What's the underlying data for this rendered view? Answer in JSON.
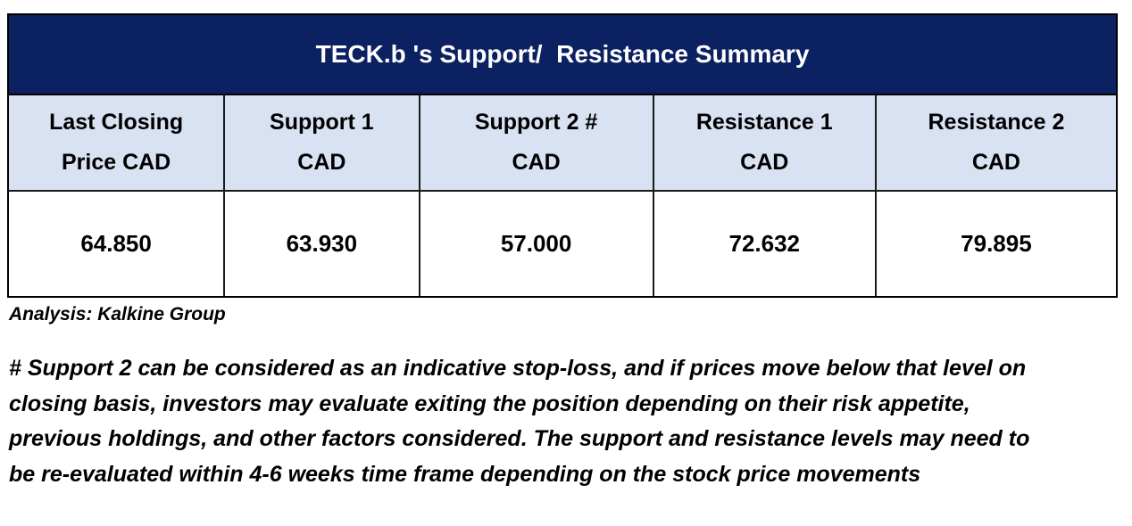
{
  "chart_data": {
    "type": "table",
    "title": "TECK.b 's Support/  Resistance Summary",
    "columns": [
      "Last Closing Price CAD",
      "Support 1 CAD",
      "Support 2 # CAD",
      "Resistance 1 CAD",
      "Resistance 2 CAD"
    ],
    "values": [
      64.85,
      63.93,
      57.0,
      72.632,
      79.895
    ],
    "source": "Analysis: Kalkine Group"
  },
  "table": {
    "title": "TECK.b 's Support/  Resistance Summary",
    "headers": [
      "Last Closing\nPrice CAD",
      "Support 1\nCAD",
      "Support 2 #\nCAD",
      "Resistance 1\nCAD",
      "Resistance 2\nCAD"
    ],
    "values": [
      "64.850",
      "63.930",
      "57.000",
      "72.632",
      "79.895"
    ]
  },
  "notes": {
    "source": "Analysis: Kalkine Group",
    "footnote": "# Support 2 can be considered as an indicative stop-loss, and if prices move below that level on\nclosing basis, investors may evaluate exiting the position depending on their risk appetite,\nprevious holdings, and other factors considered. The support and resistance levels may need to\nbe re-evaluated within 4-6 weeks time frame depending on the stock price movements"
  },
  "colors": {
    "title_bg": "#0B2161",
    "title_text": "#FFFFFF",
    "header_bg": "#D9E2F3",
    "body_bg": "#FFFFFF",
    "border": "#1A1A1A",
    "text": "#000000"
  }
}
